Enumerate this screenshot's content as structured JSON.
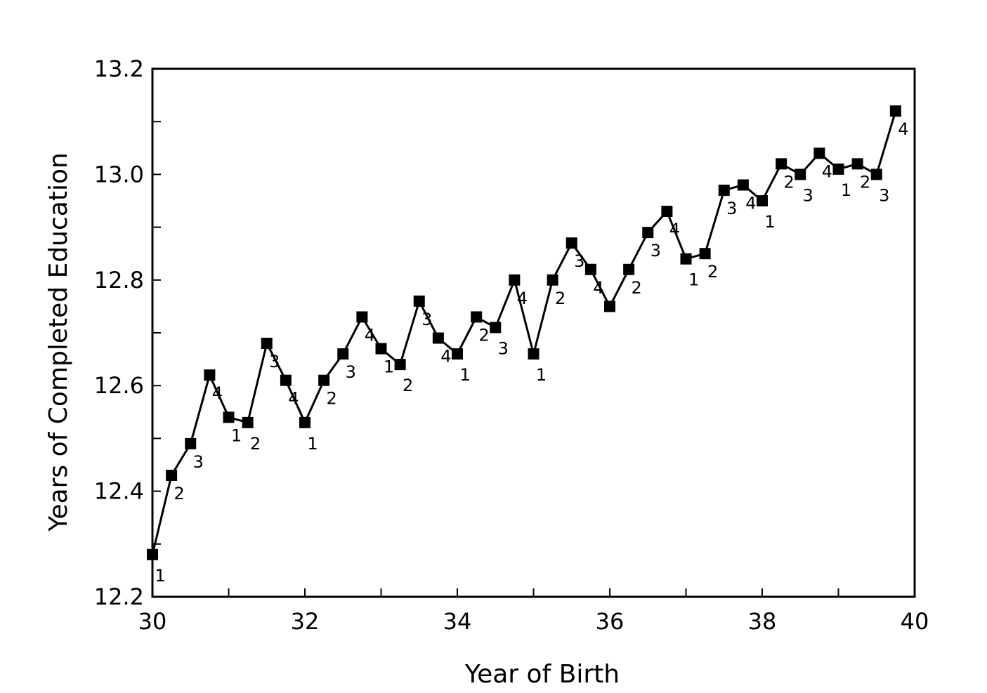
{
  "chart_data": {
    "type": "line",
    "xlabel": "Year of Birth",
    "ylabel": "Years of Completed Education",
    "xlim": [
      30,
      40
    ],
    "ylim": [
      12.2,
      13.2
    ],
    "x_ticks_labeled": [
      "30",
      "32",
      "34",
      "36",
      "38",
      "40"
    ],
    "y_ticks_labeled": [
      "12.2",
      "12.4",
      "12.6",
      "12.8",
      "13.0",
      "13.2"
    ],
    "grid": false,
    "legend": "none",
    "marker": "square",
    "series": [
      {
        "points": [
          {
            "x": 30.0,
            "y": 12.28,
            "label": "1"
          },
          {
            "x": 30.25,
            "y": 12.43,
            "label": "2"
          },
          {
            "x": 30.5,
            "y": 12.49,
            "label": "3"
          },
          {
            "x": 30.75,
            "y": 12.62,
            "label": "4"
          },
          {
            "x": 31.0,
            "y": 12.54,
            "label": "1"
          },
          {
            "x": 31.25,
            "y": 12.53,
            "label": "2"
          },
          {
            "x": 31.5,
            "y": 12.68,
            "label": "3"
          },
          {
            "x": 31.75,
            "y": 12.61,
            "label": "4"
          },
          {
            "x": 32.0,
            "y": 12.53,
            "label": "1"
          },
          {
            "x": 32.25,
            "y": 12.61,
            "label": "2"
          },
          {
            "x": 32.5,
            "y": 12.66,
            "label": "3"
          },
          {
            "x": 32.75,
            "y": 12.73,
            "label": "4"
          },
          {
            "x": 33.0,
            "y": 12.67,
            "label": "1"
          },
          {
            "x": 33.25,
            "y": 12.64,
            "label": "2"
          },
          {
            "x": 33.5,
            "y": 12.76,
            "label": "3"
          },
          {
            "x": 33.75,
            "y": 12.69,
            "label": "4"
          },
          {
            "x": 34.0,
            "y": 12.66,
            "label": "1"
          },
          {
            "x": 34.25,
            "y": 12.73,
            "label": "2"
          },
          {
            "x": 34.5,
            "y": 12.71,
            "label": "3"
          },
          {
            "x": 34.75,
            "y": 12.8,
            "label": "4"
          },
          {
            "x": 35.0,
            "y": 12.66,
            "label": "1"
          },
          {
            "x": 35.25,
            "y": 12.8,
            "label": "2"
          },
          {
            "x": 35.5,
            "y": 12.87,
            "label": "3"
          },
          {
            "x": 35.75,
            "y": 12.82,
            "label": "4"
          },
          {
            "x": 36.0,
            "y": 12.75,
            "label": ""
          },
          {
            "x": 36.25,
            "y": 12.82,
            "label": "2"
          },
          {
            "x": 36.5,
            "y": 12.89,
            "label": "3"
          },
          {
            "x": 36.75,
            "y": 12.93,
            "label": "4"
          },
          {
            "x": 37.0,
            "y": 12.84,
            "label": "1"
          },
          {
            "x": 37.25,
            "y": 12.85,
            "label": "2"
          },
          {
            "x": 37.5,
            "y": 12.97,
            "label": "3"
          },
          {
            "x": 37.75,
            "y": 12.98,
            "label": "4"
          },
          {
            "x": 38.0,
            "y": 12.95,
            "label": "1"
          },
          {
            "x": 38.25,
            "y": 13.02,
            "label": "2"
          },
          {
            "x": 38.5,
            "y": 13.0,
            "label": "3"
          },
          {
            "x": 38.75,
            "y": 13.04,
            "label": "4"
          },
          {
            "x": 39.0,
            "y": 13.01,
            "label": "1"
          },
          {
            "x": 39.25,
            "y": 13.02,
            "label": "2"
          },
          {
            "x": 39.5,
            "y": 13.0,
            "label": "3"
          },
          {
            "x": 39.75,
            "y": 13.12,
            "label": "4"
          }
        ]
      }
    ]
  }
}
